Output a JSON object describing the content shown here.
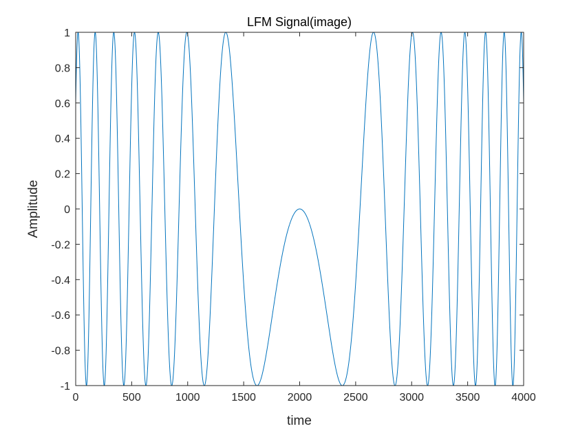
{
  "chart_data": {
    "type": "line",
    "title": "LFM Signal(image)",
    "xlabel": "time",
    "ylabel": "Amplitude",
    "xlim": [
      0,
      4000
    ],
    "ylim": [
      -1,
      1
    ],
    "xticks": [
      0,
      500,
      1000,
      1500,
      2000,
      2500,
      3000,
      3500,
      4000
    ],
    "yticks": [
      -1,
      -0.8,
      -0.6,
      -0.4,
      -0.2,
      0,
      0.2,
      0.4,
      0.6,
      0.8,
      1
    ],
    "xtick_labels": [
      "0",
      "500",
      "1000",
      "1500",
      "2000",
      "2500",
      "3000",
      "3500",
      "4000"
    ],
    "ytick_labels": [
      "-1",
      "-0.8",
      "-0.6",
      "-0.4",
      "-0.2",
      "0",
      "0.2",
      "0.4",
      "0.6",
      "0.8",
      "1"
    ],
    "grid": false,
    "series": [
      {
        "color": "#0072bd",
        "function": "-sin(pi*(t-2000)^2/290000)",
        "x_start": 0,
        "x_end": 4000,
        "num_samples": 16001
      }
    ]
  }
}
